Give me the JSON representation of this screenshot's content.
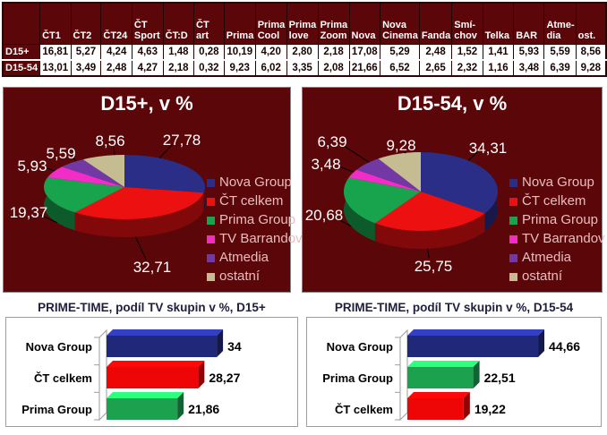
{
  "table": {
    "columns": [
      "ČT1",
      "ČT2",
      "ČT24",
      "ČT Sport",
      "ČT:D",
      "ČT art",
      "Prima",
      "Prima Cool",
      "Prima love",
      "Prima Zoom",
      "Nova",
      "Nova Cinema",
      "Fanda",
      "Smí-chov",
      "Telka",
      "BAR",
      "Atme-dia",
      "ost."
    ],
    "rows": [
      {
        "label": "D15+",
        "values": [
          "16,81",
          "5,27",
          "4,24",
          "4,63",
          "1,48",
          "0,28",
          "10,19",
          "4,20",
          "2,80",
          "2,18",
          "17,08",
          "5,29",
          "2,48",
          "1,52",
          "1,41",
          "5,93",
          "5,59",
          "8,56"
        ]
      },
      {
        "label": "D15-54",
        "values": [
          "13,01",
          "3,49",
          "2,48",
          "4,27",
          "2,18",
          "0,32",
          "9,23",
          "6,02",
          "3,35",
          "2,08",
          "21,66",
          "6,52",
          "2,65",
          "2,32",
          "1,16",
          "3,48",
          "6,39",
          "9,28"
        ]
      }
    ]
  },
  "colors": {
    "panel_background": "#5B0709",
    "nova_group_blue": "#2A2E86",
    "ct_celkem_red": "#EC1010",
    "prima_group_green": "#17A44D",
    "tv_barrandov_magenta": "#F32CC8",
    "atmedia_purple": "#7239A5",
    "ostatni_tan": "#C6BC92",
    "bar_blue": "#20287A",
    "bar_red": "#EE0505",
    "bar_green": "#1CA24F",
    "legend_text": "#E9BDBD"
  },
  "chart_data": [
    {
      "type": "pie",
      "title": "D15+, v %",
      "labels": [
        "Nova Group",
        "ČT celkem",
        "Prima Group",
        "TV Barrandov",
        "Atmedia",
        "ostatní"
      ],
      "values": [
        27.78,
        32.71,
        19.37,
        5.93,
        5.59,
        8.56
      ],
      "display_values": [
        "27,78",
        "32,71",
        "19,37",
        "5,93",
        "5,59",
        "8,56"
      ],
      "colors": [
        "#2A2E86",
        "#EC1010",
        "#17A44D",
        "#F32CC8",
        "#7239A5",
        "#C6BC92"
      ],
      "legend_position": "right",
      "style": "3d-pie"
    },
    {
      "type": "pie",
      "title": "D15-54, v %",
      "labels": [
        "Nova Group",
        "ČT celkem",
        "Prima Group",
        "TV Barrandov",
        "Atmedia",
        "ostatní"
      ],
      "values": [
        34.31,
        25.75,
        20.68,
        3.48,
        6.39,
        9.28
      ],
      "display_values": [
        "34,31",
        "25,75",
        "20,68",
        "3,48",
        "6,39",
        "9,28"
      ],
      "colors": [
        "#2A2E86",
        "#EC1010",
        "#17A44D",
        "#F32CC8",
        "#7239A5",
        "#C6BC92"
      ],
      "legend_position": "right",
      "style": "3d-pie"
    },
    {
      "type": "bar",
      "orientation": "horizontal",
      "title": "PRIME-TIME, podíl TV skupin v %, D15+",
      "categories": [
        "Nova Group",
        "ČT celkem",
        "Prima Group"
      ],
      "values": [
        34,
        28.27,
        21.86
      ],
      "display_values": [
        "34",
        "28,27",
        "21,86"
      ],
      "colors": [
        "#20287A",
        "#EE0505",
        "#1CA24F"
      ],
      "xlim": [
        0,
        45
      ],
      "style": "3d-bar"
    },
    {
      "type": "bar",
      "orientation": "horizontal",
      "title": "PRIME-TIME, podíl TV skupin v %, D15-54",
      "categories": [
        "Nova Group",
        "Prima Group",
        "ČT celkem"
      ],
      "values": [
        44.66,
        22.51,
        19.22
      ],
      "display_values": [
        "44,66",
        "22,51",
        "19,22"
      ],
      "colors": [
        "#20287A",
        "#1CA24F",
        "#EE0505"
      ],
      "xlim": [
        0,
        50
      ],
      "style": "3d-bar"
    }
  ]
}
